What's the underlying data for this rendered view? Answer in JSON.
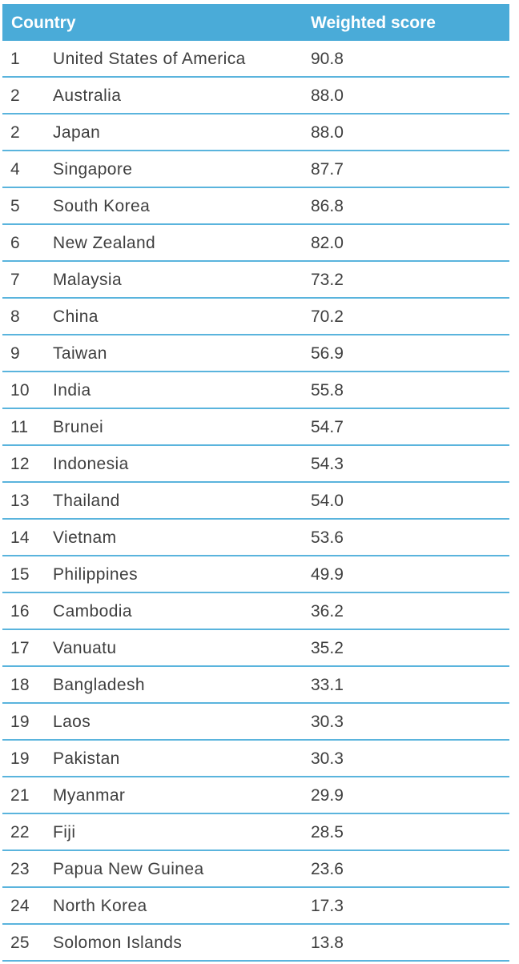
{
  "chart_data": {
    "type": "table",
    "columns": [
      "Country",
      "Weighted score"
    ],
    "rows": [
      {
        "rank": "1",
        "country": "United States of America",
        "score": "90.8"
      },
      {
        "rank": "2",
        "country": "Australia",
        "score": "88.0"
      },
      {
        "rank": "2",
        "country": "Japan",
        "score": "88.0"
      },
      {
        "rank": "4",
        "country": "Singapore",
        "score": "87.7"
      },
      {
        "rank": "5",
        "country": "South Korea",
        "score": "86.8"
      },
      {
        "rank": "6",
        "country": "New Zealand",
        "score": "82.0"
      },
      {
        "rank": "7",
        "country": "Malaysia",
        "score": "73.2"
      },
      {
        "rank": "8",
        "country": "China",
        "score": "70.2"
      },
      {
        "rank": "9",
        "country": "Taiwan",
        "score": "56.9"
      },
      {
        "rank": "10",
        "country": "India",
        "score": "55.8"
      },
      {
        "rank": "11",
        "country": "Brunei",
        "score": "54.7"
      },
      {
        "rank": "12",
        "country": "Indonesia",
        "score": "54.3"
      },
      {
        "rank": "13",
        "country": "Thailand",
        "score": "54.0"
      },
      {
        "rank": "14",
        "country": "Vietnam",
        "score": "53.6"
      },
      {
        "rank": "15",
        "country": "Philippines",
        "score": "49.9"
      },
      {
        "rank": "16",
        "country": "Cambodia",
        "score": "36.2"
      },
      {
        "rank": "17",
        "country": "Vanuatu",
        "score": "35.2"
      },
      {
        "rank": "18",
        "country": "Bangladesh",
        "score": "33.1"
      },
      {
        "rank": "19",
        "country": "Laos",
        "score": "30.3"
      },
      {
        "rank": "19",
        "country": "Pakistan",
        "score": "30.3"
      },
      {
        "rank": "21",
        "country": "Myanmar",
        "score": "29.9"
      },
      {
        "rank": "22",
        "country": "Fiji",
        "score": "28.5"
      },
      {
        "rank": "23",
        "country": "Papua New Guinea",
        "score": "23.6"
      },
      {
        "rank": "24",
        "country": "North Korea",
        "score": "17.3"
      },
      {
        "rank": "25",
        "country": "Solomon Islands",
        "score": "13.8"
      }
    ]
  },
  "colors": {
    "header_bg": "#4aabd8",
    "header_text": "#ffffff",
    "divider": "#5ab4dd",
    "body_text": "#3f3f3f"
  }
}
